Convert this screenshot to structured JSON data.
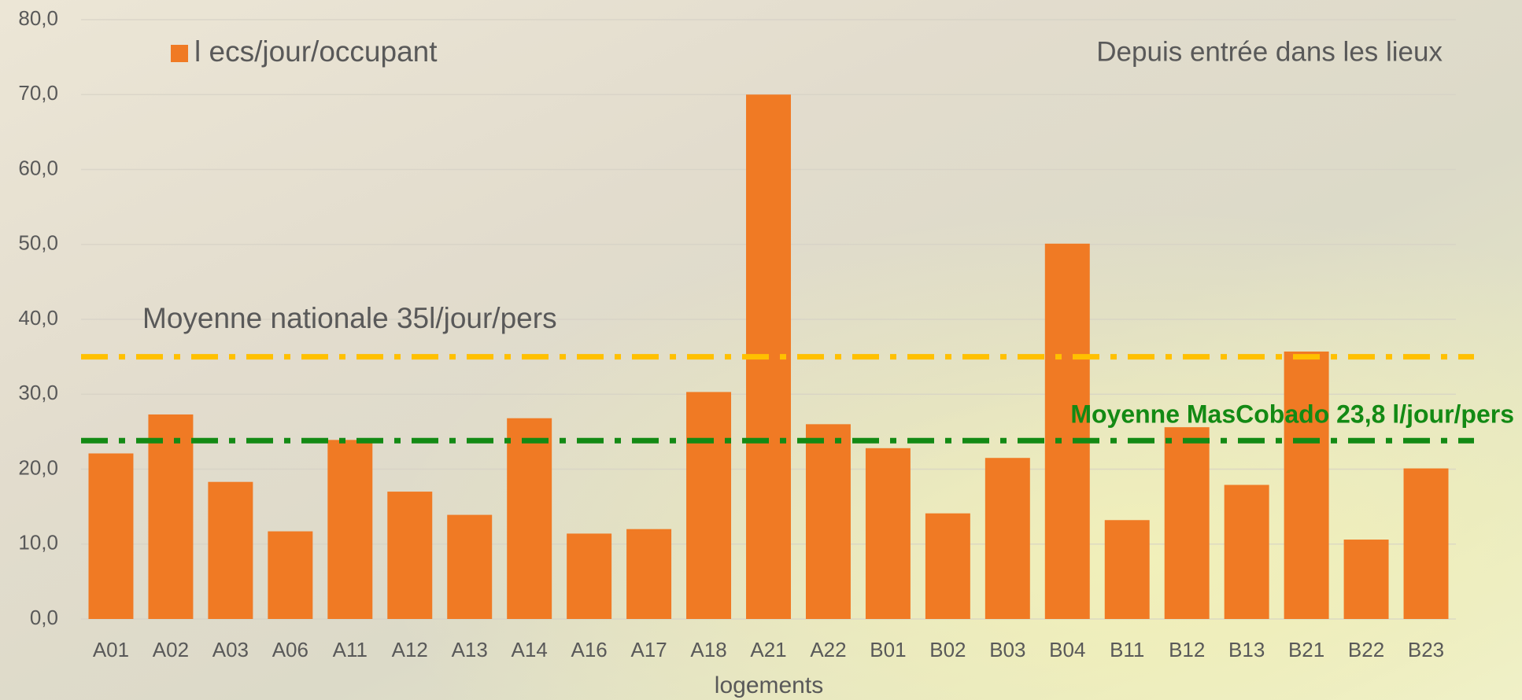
{
  "chart_data": {
    "type": "bar",
    "legend": "l ecs/jour/occupant",
    "annotation": "Depuis entrée dans les lieux",
    "x_label": "logements",
    "categories": [
      "A01",
      "A02",
      "A03",
      "A06",
      "A11",
      "A12",
      "A13",
      "A14",
      "A16",
      "A17",
      "A18",
      "A21",
      "A22",
      "B01",
      "B02",
      "B03",
      "B04",
      "B11",
      "B12",
      "B13",
      "B21",
      "B22",
      "B23"
    ],
    "values": [
      22.1,
      27.3,
      18.3,
      11.7,
      23.9,
      17.0,
      13.9,
      26.8,
      11.4,
      12.0,
      30.3,
      70.0,
      26.0,
      22.8,
      14.1,
      21.5,
      50.1,
      13.2,
      25.6,
      17.9,
      35.7,
      10.6,
      20.1
    ],
    "color": "#f07a24",
    "ylim": [
      0,
      80
    ],
    "yticks": [
      {
        "value": 0,
        "label": "0,0"
      },
      {
        "value": 10,
        "label": "10,0"
      },
      {
        "value": 20,
        "label": "20,0"
      },
      {
        "value": 30,
        "label": "30,0"
      },
      {
        "value": 40,
        "label": "40,0"
      },
      {
        "value": 50,
        "label": "50,0"
      },
      {
        "value": 60,
        "label": "60,0"
      },
      {
        "value": 70,
        "label": "70,0"
      },
      {
        "value": 80,
        "label": "80,0"
      }
    ],
    "grid": true,
    "reference_lines": [
      {
        "label": "Moyenne nationale 35l/jour/pers",
        "value": 35,
        "color": "#ffc000"
      },
      {
        "label": "Moyenne MasCobado 23,8 l/jour/pers",
        "value": 23.8,
        "color": "#138a14"
      }
    ]
  }
}
